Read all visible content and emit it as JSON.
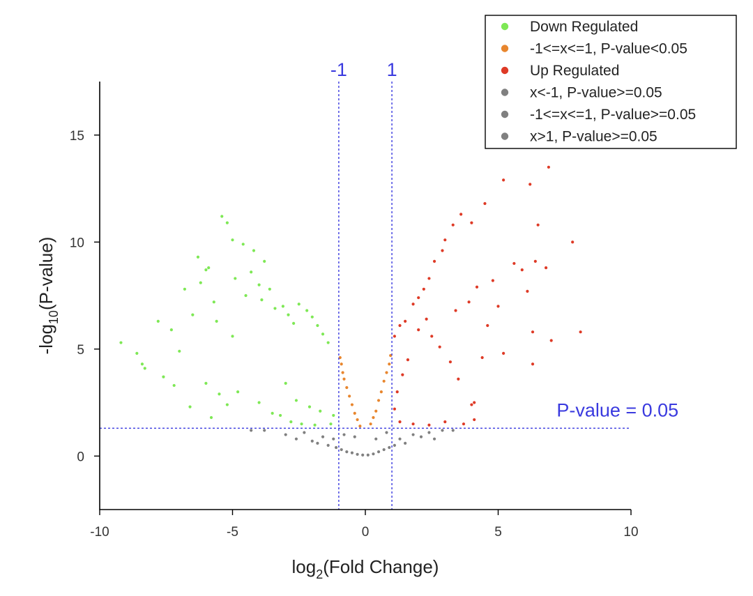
{
  "chart_data": {
    "type": "scatter",
    "x_axis": {
      "label_main": "log",
      "label_sub": "2",
      "label_rest": "(Fold Change)",
      "range": [
        -10,
        10
      ],
      "ticks": [
        -10,
        -5,
        0,
        5,
        10
      ],
      "tick_labels": [
        "-10",
        "-5",
        "0",
        "5",
        "10"
      ]
    },
    "y_axis": {
      "label_main": "-log",
      "label_sub": "10",
      "label_rest": "(P-value)",
      "range": [
        -2.5,
        17.5
      ],
      "ticks": [
        0,
        5,
        10,
        15
      ],
      "tick_labels": [
        "0",
        "5",
        "10",
        "15"
      ]
    },
    "reference_lines": {
      "x_neg": {
        "value": -1,
        "label": "-1"
      },
      "x_pos": {
        "value": 1,
        "label": "1"
      },
      "y": {
        "value": 1.3,
        "label": "P-value = 0.05"
      }
    },
    "legend": {
      "placement": "top-right",
      "entries": [
        {
          "label": "Down Regulated",
          "color": "#7ee855"
        },
        {
          "label": "-1<=x<=1, P-value<0.05",
          "color": "#e8862e"
        },
        {
          "label": "Up Regulated",
          "color": "#de3a26"
        },
        {
          "label": "x<-1, P-value>=0.05",
          "color": "#808080"
        },
        {
          "label": "-1<=x<=1, P-value>=0.05",
          "color": "#808080"
        },
        {
          "label": "x>1, P-value>=0.05",
          "color": "#808080"
        }
      ]
    },
    "series": [
      {
        "name": "Down Regulated",
        "color": "#7ee855",
        "points": [
          [
            -9.2,
            5.3
          ],
          [
            -8.6,
            4.8
          ],
          [
            -8.4,
            4.3
          ],
          [
            -8.3,
            4.1
          ],
          [
            -7.8,
            6.3
          ],
          [
            -7.6,
            3.7
          ],
          [
            -7.3,
            5.9
          ],
          [
            -7.0,
            4.9
          ],
          [
            -6.8,
            7.8
          ],
          [
            -6.5,
            6.6
          ],
          [
            -6.3,
            9.3
          ],
          [
            -6.2,
            8.1
          ],
          [
            -6.0,
            8.7
          ],
          [
            -5.9,
            8.8
          ],
          [
            -5.7,
            7.2
          ],
          [
            -5.6,
            6.3
          ],
          [
            -5.4,
            11.2
          ],
          [
            -5.2,
            10.9
          ],
          [
            -5.0,
            10.1
          ],
          [
            -4.9,
            8.3
          ],
          [
            -4.6,
            9.9
          ],
          [
            -4.5,
            7.5
          ],
          [
            -4.3,
            8.6
          ],
          [
            -4.2,
            9.6
          ],
          [
            -4.0,
            8.0
          ],
          [
            -3.9,
            7.3
          ],
          [
            -3.8,
            9.1
          ],
          [
            -3.6,
            7.8
          ],
          [
            -3.4,
            6.9
          ],
          [
            -3.1,
            7.0
          ],
          [
            -2.9,
            6.6
          ],
          [
            -2.7,
            6.2
          ],
          [
            -2.5,
            7.1
          ],
          [
            -2.2,
            6.8
          ],
          [
            -2.0,
            6.5
          ],
          [
            -1.8,
            6.1
          ],
          [
            -1.6,
            5.7
          ],
          [
            -1.4,
            5.3
          ],
          [
            -5.2,
            2.4
          ],
          [
            -4.8,
            3.0
          ],
          [
            -6.0,
            3.4
          ],
          [
            -5.5,
            2.9
          ],
          [
            -7.2,
            3.3
          ],
          [
            -4.0,
            2.5
          ],
          [
            -3.5,
            2.0
          ],
          [
            -3.2,
            1.9
          ],
          [
            -2.8,
            1.6
          ],
          [
            -2.4,
            1.5
          ],
          [
            -1.9,
            1.45
          ],
          [
            -1.3,
            1.5
          ],
          [
            -5.8,
            1.8
          ],
          [
            -6.6,
            2.3
          ],
          [
            -5.0,
            5.6
          ],
          [
            -3.0,
            3.4
          ],
          [
            -2.6,
            2.6
          ],
          [
            -2.1,
            2.3
          ],
          [
            -1.7,
            2.1
          ],
          [
            -1.2,
            1.9
          ]
        ]
      },
      {
        "name": "-1<=x<=1, P-value<0.05",
        "color": "#e8862e",
        "points": [
          [
            -0.95,
            4.6
          ],
          [
            -0.9,
            4.3
          ],
          [
            -0.85,
            3.9
          ],
          [
            -0.8,
            3.6
          ],
          [
            -0.7,
            3.2
          ],
          [
            -0.6,
            2.8
          ],
          [
            -0.5,
            2.4
          ],
          [
            -0.4,
            2.0
          ],
          [
            -0.3,
            1.7
          ],
          [
            -0.2,
            1.4
          ],
          [
            0.2,
            1.5
          ],
          [
            0.3,
            1.8
          ],
          [
            0.4,
            2.1
          ],
          [
            0.5,
            2.6
          ],
          [
            0.6,
            3.0
          ],
          [
            0.7,
            3.5
          ],
          [
            0.8,
            3.9
          ],
          [
            0.9,
            4.3
          ],
          [
            0.95,
            4.7
          ]
        ]
      },
      {
        "name": "Up Regulated",
        "color": "#de3a26",
        "points": [
          [
            1.1,
            5.6
          ],
          [
            1.3,
            6.1
          ],
          [
            1.5,
            6.3
          ],
          [
            1.8,
            7.1
          ],
          [
            2.0,
            7.4
          ],
          [
            2.2,
            7.8
          ],
          [
            2.4,
            8.3
          ],
          [
            2.6,
            9.1
          ],
          [
            2.9,
            9.6
          ],
          [
            3.0,
            10.1
          ],
          [
            3.3,
            10.8
          ],
          [
            3.6,
            11.3
          ],
          [
            4.0,
            10.9
          ],
          [
            4.5,
            11.8
          ],
          [
            5.2,
            12.9
          ],
          [
            6.2,
            12.7
          ],
          [
            6.9,
            13.5
          ],
          [
            6.5,
            10.8
          ],
          [
            6.4,
            9.1
          ],
          [
            5.6,
            9.0
          ],
          [
            5.9,
            8.7
          ],
          [
            6.8,
            8.8
          ],
          [
            7.8,
            10.0
          ],
          [
            6.1,
            7.7
          ],
          [
            5.0,
            7.0
          ],
          [
            4.6,
            6.1
          ],
          [
            6.3,
            5.8
          ],
          [
            7.0,
            5.4
          ],
          [
            8.1,
            5.8
          ],
          [
            5.2,
            4.8
          ],
          [
            6.3,
            4.3
          ],
          [
            4.4,
            4.6
          ],
          [
            4.1,
            2.5
          ],
          [
            4.0,
            2.4
          ],
          [
            3.5,
            3.6
          ],
          [
            3.2,
            4.4
          ],
          [
            2.8,
            5.1
          ],
          [
            2.5,
            5.6
          ],
          [
            2.3,
            6.4
          ],
          [
            2.0,
            5.9
          ],
          [
            1.6,
            4.5
          ],
          [
            1.4,
            3.8
          ],
          [
            1.2,
            3.0
          ],
          [
            1.1,
            2.2
          ],
          [
            1.3,
            1.6
          ],
          [
            1.8,
            1.5
          ],
          [
            2.4,
            1.45
          ],
          [
            3.0,
            1.6
          ],
          [
            3.7,
            1.5
          ],
          [
            4.1,
            1.7
          ],
          [
            3.9,
            7.2
          ],
          [
            4.8,
            8.2
          ],
          [
            4.2,
            7.9
          ],
          [
            3.4,
            6.8
          ]
        ]
      },
      {
        "name": "x<-1, P-value>=0.05",
        "color": "#808080",
        "points": [
          [
            -4.3,
            1.2
          ],
          [
            -3.8,
            1.2
          ],
          [
            -3.0,
            1.0
          ],
          [
            -2.6,
            0.8
          ],
          [
            -2.3,
            1.1
          ],
          [
            -2.0,
            0.7
          ],
          [
            -1.8,
            0.6
          ],
          [
            -1.6,
            0.9
          ],
          [
            -1.4,
            0.5
          ],
          [
            -1.2,
            0.8
          ],
          [
            -1.1,
            0.4
          ]
        ]
      },
      {
        "name": "-1<=x<=1, P-value>=0.05",
        "color": "#808080",
        "points": [
          [
            -0.9,
            0.3
          ],
          [
            -0.7,
            0.2
          ],
          [
            -0.5,
            0.15
          ],
          [
            -0.3,
            0.08
          ],
          [
            -0.1,
            0.05
          ],
          [
            0.1,
            0.05
          ],
          [
            0.3,
            0.1
          ],
          [
            0.5,
            0.2
          ],
          [
            0.7,
            0.3
          ],
          [
            0.9,
            0.4
          ],
          [
            -0.8,
            1.0
          ],
          [
            0.8,
            1.1
          ],
          [
            -0.4,
            0.9
          ],
          [
            0.4,
            0.8
          ]
        ]
      },
      {
        "name": "x>1, P-value>=0.05",
        "color": "#808080",
        "points": [
          [
            1.1,
            0.5
          ],
          [
            1.3,
            0.8
          ],
          [
            1.5,
            0.6
          ],
          [
            1.8,
            1.0
          ],
          [
            2.1,
            0.9
          ],
          [
            2.4,
            1.1
          ],
          [
            2.6,
            0.8
          ],
          [
            2.9,
            1.2
          ],
          [
            3.3,
            1.2
          ]
        ]
      }
    ]
  }
}
